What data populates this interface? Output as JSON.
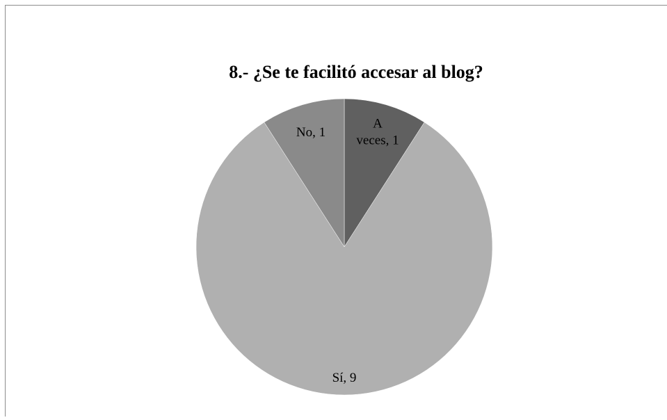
{
  "chart_data": {
    "type": "pie",
    "title": "8.- ¿Se te facilitó accesar al blog?",
    "categories": [
      "A veces",
      "Sí",
      "No"
    ],
    "values": [
      1,
      9,
      1
    ],
    "value_labels": [
      "A veces, 1",
      "Sí, 9",
      "No, 1"
    ],
    "colors": [
      "#606060",
      "#b0b0b0",
      "#8a8a8a"
    ]
  }
}
